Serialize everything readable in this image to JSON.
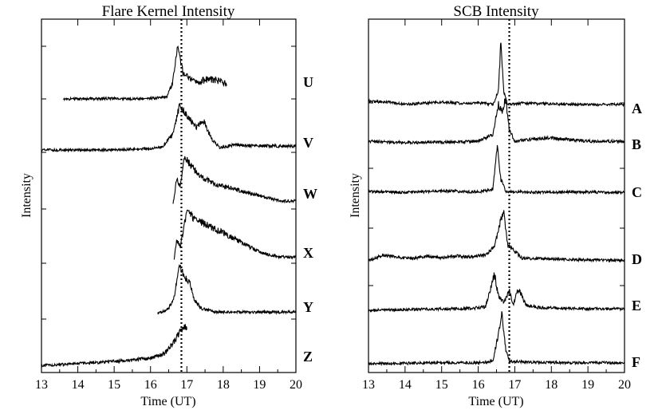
{
  "chart_data": [
    {
      "type": "line",
      "title": "Flare Kernel Intensity",
      "xlabel": "Time (UT)",
      "ylabel": "Intensity",
      "xlim": [
        13,
        20
      ],
      "xticks": [
        "13",
        "14",
        "15",
        "16",
        "17",
        "18",
        "19",
        "20"
      ],
      "yunits": "arbitrary (stacked offset curves)",
      "marker_line": {
        "x": 16.85,
        "style": "dotted"
      },
      "series": [
        {
          "name": "U",
          "points": [
            [
              13.6,
              0.0
            ],
            [
              14.2,
              0.0
            ],
            [
              14.8,
              0.01
            ],
            [
              15.4,
              0.0
            ],
            [
              16.0,
              0.01
            ],
            [
              16.45,
              0.04
            ],
            [
              16.6,
              0.3
            ],
            [
              16.75,
              1.0
            ],
            [
              16.9,
              0.5
            ],
            [
              17.2,
              0.35
            ],
            [
              17.4,
              0.3
            ]
          ],
          "segment2": [
            [
              17.4,
              0.35
            ],
            [
              17.6,
              0.4
            ],
            [
              17.9,
              0.35
            ],
            [
              18.1,
              0.3
            ]
          ]
        },
        {
          "name": "V",
          "points": [
            [
              13.0,
              0.0
            ],
            [
              14.0,
              0.0
            ],
            [
              15.0,
              0.0
            ],
            [
              15.8,
              0.02
            ],
            [
              16.3,
              0.05
            ],
            [
              16.6,
              0.3
            ],
            [
              16.8,
              0.9
            ],
            [
              17.0,
              0.7
            ],
            [
              17.25,
              0.45
            ],
            [
              17.45,
              0.6
            ],
            [
              17.7,
              0.2
            ],
            [
              17.9,
              0.05
            ],
            [
              18.3,
              0.1
            ],
            [
              19.0,
              0.08
            ],
            [
              20.0,
              0.08
            ]
          ]
        },
        {
          "name": "W",
          "points": [
            [
              16.62,
              0.0
            ],
            [
              16.72,
              0.5
            ],
            [
              16.82,
              0.35
            ],
            [
              16.92,
              1.0
            ],
            [
              17.1,
              0.8
            ],
            [
              17.4,
              0.55
            ],
            [
              17.8,
              0.4
            ],
            [
              18.3,
              0.3
            ],
            [
              18.8,
              0.2
            ],
            [
              19.3,
              0.1
            ],
            [
              19.6,
              0.05
            ],
            [
              20.0,
              0.05
            ]
          ]
        },
        {
          "name": "X",
          "points": [
            [
              16.65,
              0.0
            ],
            [
              16.72,
              0.4
            ],
            [
              16.82,
              0.25
            ],
            [
              17.0,
              1.0
            ],
            [
              17.2,
              0.85
            ],
            [
              17.6,
              0.7
            ],
            [
              18.0,
              0.55
            ],
            [
              18.5,
              0.35
            ],
            [
              19.0,
              0.15
            ],
            [
              19.5,
              0.05
            ],
            [
              20.0,
              0.05
            ]
          ]
        },
        {
          "name": "Y",
          "points": [
            [
              16.2,
              0.0
            ],
            [
              16.5,
              0.1
            ],
            [
              16.65,
              0.35
            ],
            [
              16.8,
              1.0
            ],
            [
              16.95,
              0.75
            ],
            [
              17.1,
              0.6
            ],
            [
              17.2,
              0.3
            ],
            [
              17.4,
              0.1
            ],
            [
              17.8,
              0.03
            ],
            [
              18.5,
              0.03
            ],
            [
              20.0,
              0.03
            ]
          ]
        },
        {
          "name": "Z",
          "points": [
            [
              13.0,
              0.0
            ],
            [
              13.5,
              0.02
            ],
            [
              14.0,
              0.05
            ],
            [
              14.5,
              0.07
            ],
            [
              15.0,
              0.1
            ],
            [
              15.5,
              0.13
            ],
            [
              16.0,
              0.18
            ],
            [
              16.4,
              0.3
            ],
            [
              16.65,
              0.6
            ],
            [
              16.85,
              0.9
            ],
            [
              16.95,
              1.0
            ],
            [
              17.0,
              0.95
            ]
          ]
        }
      ]
    },
    {
      "type": "line",
      "title": "SCB Intensity",
      "xlabel": "Time (UT)",
      "ylabel": "Intensity",
      "xlim": [
        13,
        20
      ],
      "xticks": [
        "13",
        "14",
        "15",
        "16",
        "17",
        "18",
        "19",
        "20"
      ],
      "yunits": "arbitrary (stacked offset curves)",
      "marker_line": {
        "x": 16.85,
        "style": "dotted"
      },
      "series": [
        {
          "name": "A",
          "points": [
            [
              13.0,
              0.05
            ],
            [
              13.5,
              0.04
            ],
            [
              14.0,
              0.0
            ],
            [
              14.5,
              0.02
            ],
            [
              15.0,
              0.04
            ],
            [
              15.5,
              0.02
            ],
            [
              16.0,
              0.03
            ],
            [
              16.4,
              0.0
            ],
            [
              16.55,
              0.2
            ],
            [
              16.62,
              1.0
            ],
            [
              16.7,
              0.2
            ],
            [
              16.8,
              0.0
            ],
            [
              17.2,
              0.02
            ],
            [
              18.0,
              0.01
            ],
            [
              19.0,
              0.0
            ],
            [
              20.0,
              0.0
            ]
          ]
        },
        {
          "name": "B",
          "points": [
            [
              13.0,
              0.05
            ],
            [
              14.0,
              0.02
            ],
            [
              15.0,
              0.03
            ],
            [
              16.0,
              0.05
            ],
            [
              16.4,
              0.2
            ],
            [
              16.55,
              0.85
            ],
            [
              16.65,
              0.7
            ],
            [
              16.75,
              1.0
            ],
            [
              16.85,
              0.3
            ],
            [
              17.0,
              0.05
            ],
            [
              17.5,
              0.1
            ],
            [
              18.0,
              0.12
            ],
            [
              19.0,
              0.05
            ],
            [
              20.0,
              0.05
            ]
          ]
        },
        {
          "name": "C",
          "points": [
            [
              13.0,
              0.05
            ],
            [
              14.0,
              0.03
            ],
            [
              15.0,
              0.06
            ],
            [
              16.0,
              0.04
            ],
            [
              16.4,
              0.1
            ],
            [
              16.52,
              1.0
            ],
            [
              16.62,
              0.3
            ],
            [
              16.75,
              0.05
            ],
            [
              17.5,
              0.03
            ],
            [
              18.5,
              0.04
            ],
            [
              19.5,
              0.03
            ],
            [
              20.0,
              0.03
            ]
          ]
        },
        {
          "name": "D",
          "points": [
            [
              13.0,
              0.0
            ],
            [
              13.4,
              0.12
            ],
            [
              13.8,
              0.08
            ],
            [
              14.2,
              0.04
            ],
            [
              14.6,
              0.1
            ],
            [
              15.0,
              0.06
            ],
            [
              15.4,
              0.1
            ],
            [
              15.8,
              0.08
            ],
            [
              16.2,
              0.12
            ],
            [
              16.45,
              0.3
            ],
            [
              16.6,
              0.8
            ],
            [
              16.7,
              1.0
            ],
            [
              16.8,
              0.35
            ],
            [
              17.0,
              0.2
            ],
            [
              17.2,
              0.05
            ],
            [
              18.0,
              0.04
            ],
            [
              19.0,
              0.02
            ],
            [
              20.0,
              0.01
            ]
          ]
        },
        {
          "name": "E",
          "points": [
            [
              13.0,
              0.0
            ],
            [
              14.0,
              0.02
            ],
            [
              15.0,
              0.04
            ],
            [
              15.8,
              0.05
            ],
            [
              16.2,
              0.1
            ],
            [
              16.45,
              1.0
            ],
            [
              16.55,
              0.4
            ],
            [
              16.7,
              0.2
            ],
            [
              16.85,
              0.55
            ],
            [
              16.95,
              0.15
            ],
            [
              17.1,
              0.6
            ],
            [
              17.3,
              0.15
            ],
            [
              17.6,
              0.08
            ],
            [
              18.5,
              0.05
            ],
            [
              19.5,
              0.04
            ],
            [
              20.0,
              0.04
            ]
          ]
        },
        {
          "name": "F",
          "points": [
            [
              13.0,
              0.0
            ],
            [
              14.0,
              0.01
            ],
            [
              15.0,
              0.02
            ],
            [
              16.0,
              0.02
            ],
            [
              16.4,
              0.05
            ],
            [
              16.55,
              0.6
            ],
            [
              16.65,
              1.0
            ],
            [
              16.75,
              0.3
            ],
            [
              16.85,
              0.05
            ],
            [
              17.5,
              0.03
            ],
            [
              18.5,
              0.02
            ],
            [
              20.0,
              0.02
            ]
          ]
        }
      ]
    }
  ]
}
